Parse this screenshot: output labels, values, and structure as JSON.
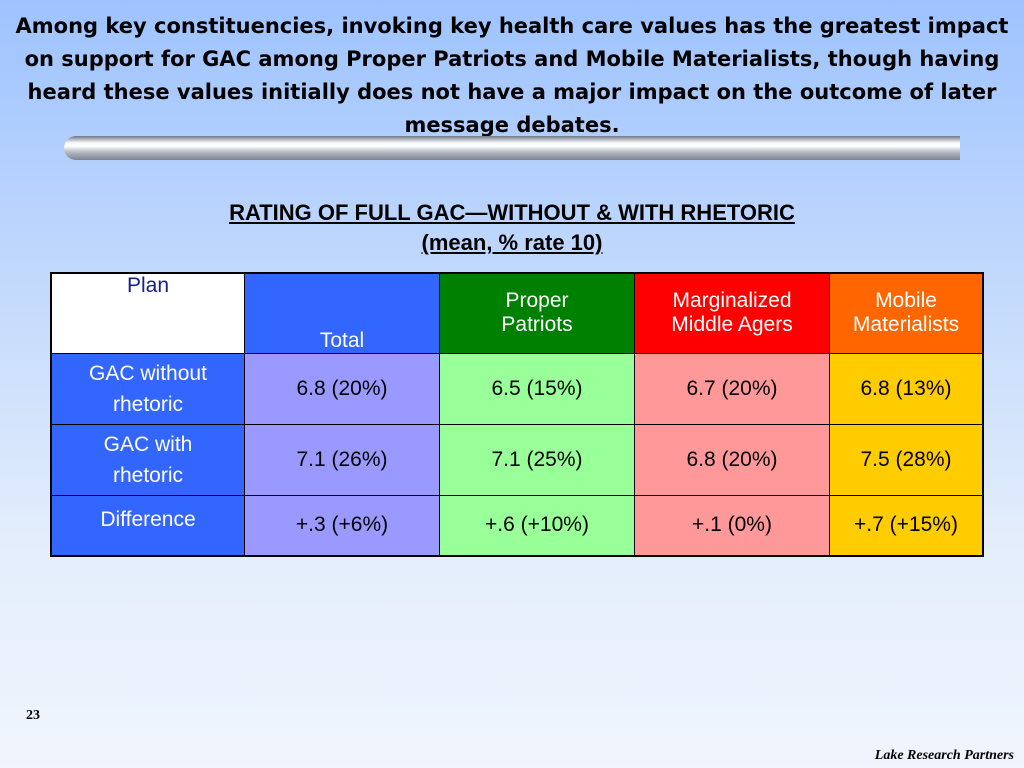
{
  "slide": {
    "title": "Among key constituencies, invoking key health care values has the greatest impact on support for GAC among Proper Patriots and Mobile Materialists, though having heard these values initially does not have a major impact on the outcome of later message debates.",
    "table_title_line1": "RATING OF FULL GAC—WITHOUT & WITH RHETORIC",
    "table_title_line2": "(mean, % rate 10)",
    "page_number": "23",
    "footer_brand": "Lake Research Partners"
  },
  "colors": {
    "total_header": "#3366ff",
    "proper_patriots_header": "#008000",
    "marginalized_header": "#ff0000",
    "mobile_materialists_header": "#ff6600",
    "total_cells": "#9999ff",
    "proper_patriots_cells": "#99ff99",
    "marginalized_cells": "#ff9999",
    "mobile_materialists_cells": "#ffcc00"
  },
  "chart_data": {
    "type": "table",
    "title": "RATING OF FULL GAC—WITHOUT & WITH RHETORIC (mean, % rate 10)",
    "columns": [
      "Plan",
      "Total",
      "Proper Patriots",
      "Marginalized Middle Agers",
      "Mobile Materialists"
    ],
    "header": {
      "plan": "Plan",
      "total": "Total",
      "proper_patriots_1": "Proper",
      "proper_patriots_2": "Patriots",
      "marginalized_1": "Marginalized",
      "marginalized_2": "Middle Agers",
      "mobile_materialists_1": "Mobile",
      "mobile_materialists_2": "Materialists"
    },
    "rows": [
      {
        "label_1": "GAC without",
        "label_2": "rhetoric",
        "total": "6.8 (20%)",
        "proper_patriots": "6.5 (15%)",
        "marginalized": "6.7 (20%)",
        "mobile_materialists": "6.8 (13%)"
      },
      {
        "label_1": "GAC with",
        "label_2": "rhetoric",
        "total": "7.1 (26%)",
        "proper_patriots": "7.1 (25%)",
        "marginalized": "6.8 (20%)",
        "mobile_materialists": "7.5 (28%)"
      },
      {
        "label_1": "Difference",
        "label_2": "",
        "total": "+.3 (+6%)",
        "proper_patriots": "+.6 (+10%)",
        "marginalized": "+.1 (0%)",
        "mobile_materialists": "+.7 (+15%)"
      }
    ]
  }
}
